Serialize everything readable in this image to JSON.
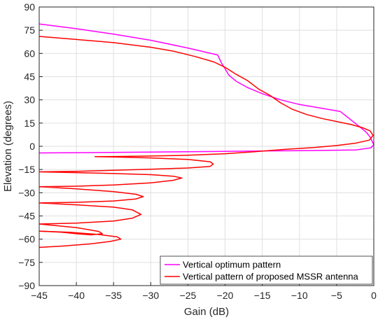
{
  "chart_data": {
    "type": "line",
    "xlabel": "Gain (dB)",
    "ylabel": "Elevation (degrees)",
    "xlim": [
      -45,
      0
    ],
    "ylim": [
      -90,
      90
    ],
    "xticks": [
      -45,
      -40,
      -35,
      -30,
      -25,
      -20,
      -15,
      -10,
      -5,
      0
    ],
    "yticks": [
      90,
      75,
      60,
      45,
      30,
      15,
      0,
      -15,
      -30,
      -45,
      -60,
      -75,
      -90
    ],
    "xtick_labels": [
      "−45",
      "−40",
      "−35",
      "−30",
      "−25",
      "−20",
      "−15",
      "−10",
      "−5",
      "0"
    ],
    "ytick_labels": [
      "90",
      "75",
      "60",
      "45",
      "30",
      "15",
      "0",
      "−15",
      "−30",
      "−45",
      "−60",
      "−75",
      "−90"
    ],
    "grid": true,
    "legend_position": "bottom-right",
    "series": [
      {
        "name": "Vertical optimum pattern",
        "color": "#ff00ff",
        "points": [
          [
            -45,
            79
          ],
          [
            -40,
            76
          ],
          [
            -35,
            72.5
          ],
          [
            -30,
            68.5
          ],
          [
            -25,
            63.5
          ],
          [
            -21,
            59
          ],
          [
            -20.5,
            54
          ],
          [
            -20,
            50
          ],
          [
            -19.5,
            46
          ],
          [
            -18.5,
            42
          ],
          [
            -17,
            38
          ],
          [
            -15,
            34
          ],
          [
            -12.5,
            30
          ],
          [
            -10,
            27
          ],
          [
            -7.5,
            25
          ],
          [
            -4.5,
            22.5
          ],
          [
            -2,
            13
          ],
          [
            -1,
            9
          ],
          [
            -0.5,
            6
          ],
          [
            0,
            1
          ],
          [
            -0.4,
            -1
          ],
          [
            -2.5,
            -2.4
          ],
          [
            -10,
            -2.8
          ],
          [
            -20,
            -3.3
          ],
          [
            -30,
            -3.7
          ],
          [
            -40,
            -4.1
          ],
          [
            -45,
            -4.3
          ]
        ]
      },
      {
        "name": "Vertical pattern of proposed MSSR antenna",
        "color": "#ff0000",
        "points": [
          [
            -45,
            71
          ],
          [
            -40,
            69
          ],
          [
            -35,
            67
          ],
          [
            -30,
            64
          ],
          [
            -27,
            61.5
          ],
          [
            -24,
            58
          ],
          [
            -21.5,
            54.5
          ],
          [
            -20,
            51
          ],
          [
            -18.5,
            46.5
          ],
          [
            -17,
            42.5
          ],
          [
            -15.5,
            37
          ],
          [
            -14,
            33
          ],
          [
            -12.5,
            28
          ],
          [
            -11,
            24
          ],
          [
            -9,
            20.5
          ],
          [
            -7,
            18
          ],
          [
            -5,
            16
          ],
          [
            -3,
            14
          ],
          [
            -1.5,
            12
          ],
          [
            -0.5,
            10
          ],
          [
            -0.1,
            7
          ],
          [
            -0.6,
            4
          ],
          [
            -2.5,
            2
          ],
          [
            -5,
            0.5
          ],
          [
            -8,
            -0.8
          ],
          [
            -12,
            -2
          ],
          [
            -16,
            -3.5
          ],
          [
            -20,
            -4.8
          ],
          [
            -25,
            -5.8
          ],
          [
            -30,
            -6.3
          ],
          [
            -35,
            -6.6
          ],
          [
            -37.5,
            -6.7
          ],
          [
            -35,
            -6.9
          ],
          [
            -30,
            -7.5
          ],
          [
            -25,
            -8.5
          ],
          [
            -22,
            -10
          ],
          [
            -21.6,
            -11.5
          ],
          [
            -22,
            -13
          ],
          [
            -25,
            -14
          ],
          [
            -30,
            -14.8
          ],
          [
            -35,
            -15.5
          ],
          [
            -40,
            -16.2
          ],
          [
            -45,
            -16.5
          ],
          [
            -40,
            -17
          ],
          [
            -35,
            -17.6
          ],
          [
            -30,
            -18.3
          ],
          [
            -27,
            -19.3
          ],
          [
            -25.8,
            -20.5
          ],
          [
            -27,
            -22
          ],
          [
            -30,
            -23.6
          ],
          [
            -35,
            -25
          ],
          [
            -40,
            -25.8
          ],
          [
            -45,
            -26.1
          ],
          [
            -40,
            -27.5
          ],
          [
            -35,
            -29.3
          ],
          [
            -32,
            -31
          ],
          [
            -31,
            -32.5
          ],
          [
            -32,
            -34
          ],
          [
            -35,
            -35.3
          ],
          [
            -40,
            -36.2
          ],
          [
            -45,
            -36.6
          ],
          [
            -40,
            -37.8
          ],
          [
            -35,
            -39.3
          ],
          [
            -32.5,
            -41
          ],
          [
            -31.3,
            -44
          ],
          [
            -32.5,
            -46.5
          ],
          [
            -35,
            -48.3
          ],
          [
            -40,
            -49.6
          ],
          [
            -45,
            -50.2
          ],
          [
            -40,
            -52.5
          ],
          [
            -37,
            -55
          ],
          [
            -36.5,
            -56.5
          ],
          [
            -38,
            -57.2
          ],
          [
            -40,
            -56.5
          ],
          [
            -42,
            -55.5
          ],
          [
            -44,
            -55
          ],
          [
            -45,
            -54.8
          ]
        ],
        "lobe_tail": [
          [
            -45,
            -54.8
          ],
          [
            -41,
            -55.5
          ],
          [
            -37,
            -57
          ],
          [
            -34.5,
            -58.5
          ],
          [
            -34,
            -60
          ],
          [
            -35.5,
            -61.5
          ],
          [
            -38,
            -63
          ],
          [
            -42,
            -64.5
          ],
          [
            -45,
            -65.3
          ]
        ]
      }
    ]
  }
}
